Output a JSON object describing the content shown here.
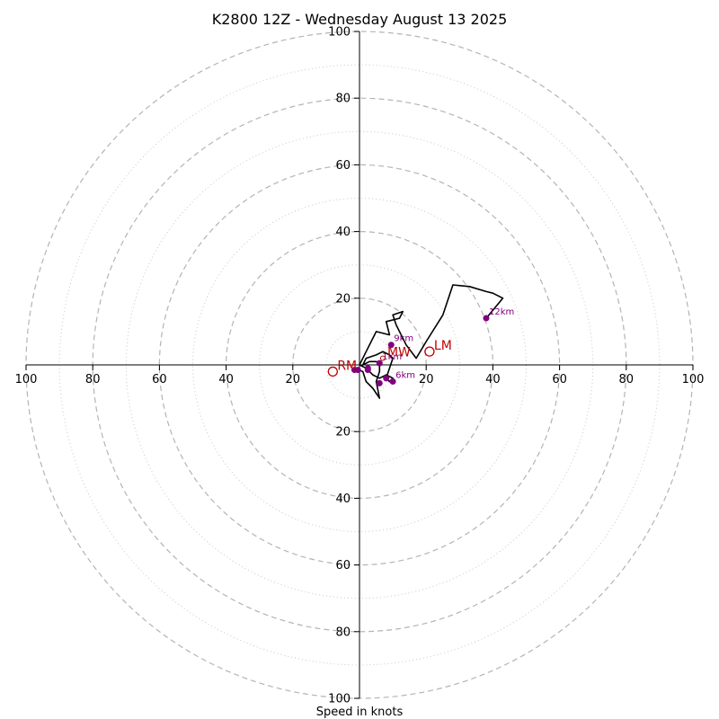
{
  "chart_data": {
    "type": "scatter",
    "subtype": "hodograph",
    "title": "K2800 12Z - Wednesday August 13 2025",
    "xlabel": "Speed in knots",
    "ylabel": "",
    "range": [
      -100,
      100
    ],
    "rings": {
      "major": [
        20,
        40,
        60,
        80,
        100
      ],
      "minor": [
        10,
        30,
        50,
        70,
        90
      ],
      "major_style": "dashed",
      "minor_style": "dotted"
    },
    "axis_ticks": {
      "top": [
        "100",
        "80",
        "60",
        "40",
        "20"
      ],
      "bottom": [
        "20",
        "40",
        "60",
        "80",
        "100"
      ],
      "left": [
        "100",
        "80",
        "60",
        "40",
        "20"
      ],
      "right": [
        "20",
        "40",
        "60",
        "80",
        "100"
      ]
    },
    "hodograph_trace": {
      "color": "#000000",
      "points": [
        [
          -0.5,
          -1.5
        ],
        [
          1,
          -2
        ],
        [
          2,
          -5
        ],
        [
          4,
          -7
        ],
        [
          6,
          -10
        ],
        [
          5,
          -5
        ],
        [
          6,
          -2
        ],
        [
          6,
          0.5
        ],
        [
          5,
          1
        ],
        [
          3,
          1
        ],
        [
          1,
          0
        ],
        [
          2,
          2
        ],
        [
          5,
          3
        ],
        [
          7,
          4
        ],
        [
          9,
          3
        ],
        [
          10,
          2
        ],
        [
          9,
          -1
        ],
        [
          8,
          -4
        ],
        [
          9,
          -5
        ],
        [
          10,
          -4
        ],
        [
          8,
          -3
        ],
        [
          6,
          -4
        ],
        [
          4,
          -3
        ],
        [
          2,
          -1
        ],
        [
          0,
          0
        ],
        [
          2,
          4
        ],
        [
          5,
          10
        ],
        [
          9,
          9
        ],
        [
          8,
          13
        ],
        [
          12,
          14
        ],
        [
          13,
          16
        ],
        [
          10,
          15
        ],
        [
          11,
          12
        ],
        [
          14,
          6
        ],
        [
          17,
          2
        ],
        [
          20,
          7
        ],
        [
          25,
          15
        ],
        [
          28,
          24
        ],
        [
          33,
          23.5
        ],
        [
          38,
          22
        ],
        [
          40,
          21.5
        ],
        [
          43,
          20
        ],
        [
          38,
          14
        ]
      ]
    },
    "height_markers": {
      "color": "#800080",
      "points": [
        {
          "label": "",
          "x": -0.5,
          "y": -1.5
        },
        {
          "label": "",
          "x": -1.5,
          "y": -1.5
        },
        {
          "label": "",
          "x": 2.5,
          "y": -1
        },
        {
          "label": "",
          "x": 2.5,
          "y": -1.5
        },
        {
          "label": "1km",
          "x": 6,
          "y": 0.5
        },
        {
          "label": "",
          "x": 6,
          "y": -5.5
        },
        {
          "label": "",
          "x": 8,
          "y": -4
        },
        {
          "label": "6km",
          "x": 10,
          "y": -5
        },
        {
          "label": "9km",
          "x": 9.5,
          "y": 6
        },
        {
          "label": "12km",
          "x": 38,
          "y": 14
        }
      ]
    },
    "storm_motion": {
      "color": "#c00000",
      "points": [
        {
          "label": "RM",
          "x": -8,
          "y": -2
        },
        {
          "label": "LM",
          "x": 21,
          "y": 4
        },
        {
          "label": "MW",
          "x": 7,
          "y": 2
        }
      ]
    }
  }
}
